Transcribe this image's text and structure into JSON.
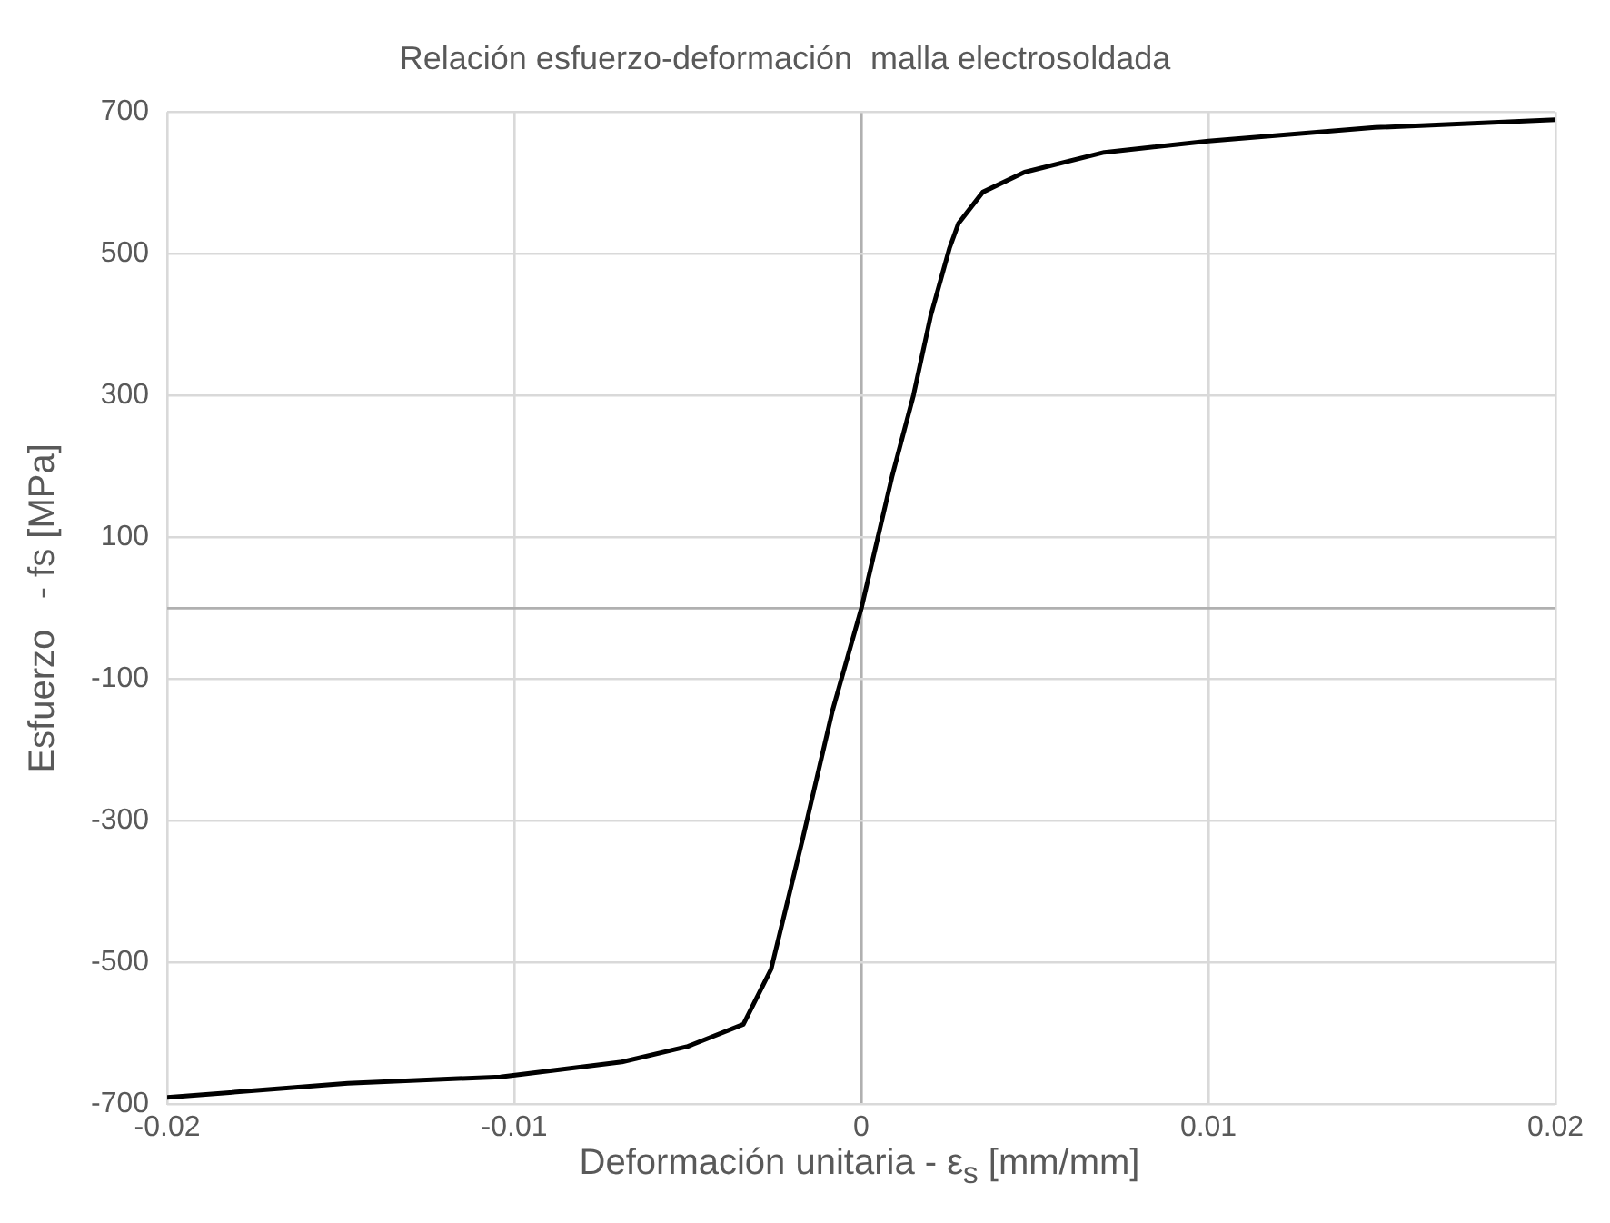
{
  "chart_data": {
    "type": "line",
    "title": "Relación esfuerzo-deformación  malla electrosoldada",
    "xlabel": "Deformación unitaria - ε$_{s}$ [mm/mm]",
    "ylabel": "Esfuerzo   - fs [MPa]",
    "series": [
      {
        "color": "#000000",
        "x": [
          -0.02,
          -0.0148,
          -0.0104,
          -0.0069,
          -0.005,
          -0.0034,
          -0.0026,
          -0.0017,
          -0.00083,
          0,
          0.00089,
          0.0015,
          0.002,
          0.00254,
          0.0028,
          0.0035,
          0.0047,
          0.007,
          0.01,
          0.0148,
          0.02
        ],
        "values": [
          -690,
          -670,
          -661,
          -640,
          -618,
          -587,
          -509,
          -327,
          -144,
          0,
          187,
          300,
          413,
          508,
          543,
          587,
          615,
          643,
          659,
          678,
          689
        ]
      }
    ],
    "xlim": [
      -0.02,
      0.02
    ],
    "xticks": [
      -0.02,
      -0.01,
      0,
      0.01,
      0.02
    ],
    "ylim": [
      -700,
      700
    ],
    "yticks": [
      -700,
      -500,
      -300,
      -100,
      100,
      300,
      500,
      700
    ],
    "grid": true,
    "legend": false,
    "marker": "none",
    "line_style": "solid"
  }
}
